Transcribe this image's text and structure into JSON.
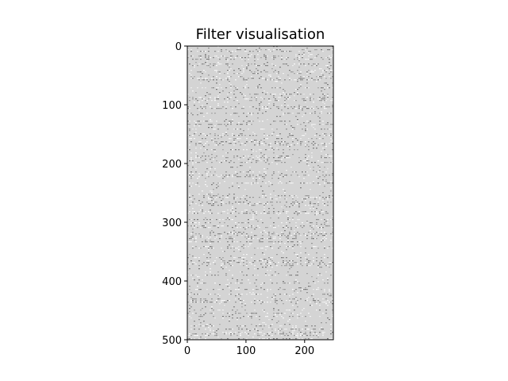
{
  "chart_data": {
    "type": "heatmap",
    "title": "Filter visualisation",
    "xlabel": "",
    "ylabel": "",
    "colormap": "gray",
    "background_color": "#d4d4d4",
    "xlim": [
      0,
      249
    ],
    "ylim": [
      0,
      500
    ],
    "y_inverted": true,
    "x_ticks": [
      0,
      100,
      200
    ],
    "y_ticks": [
      0,
      100,
      200,
      300,
      400,
      500
    ],
    "grid": false,
    "legend": "none"
  }
}
